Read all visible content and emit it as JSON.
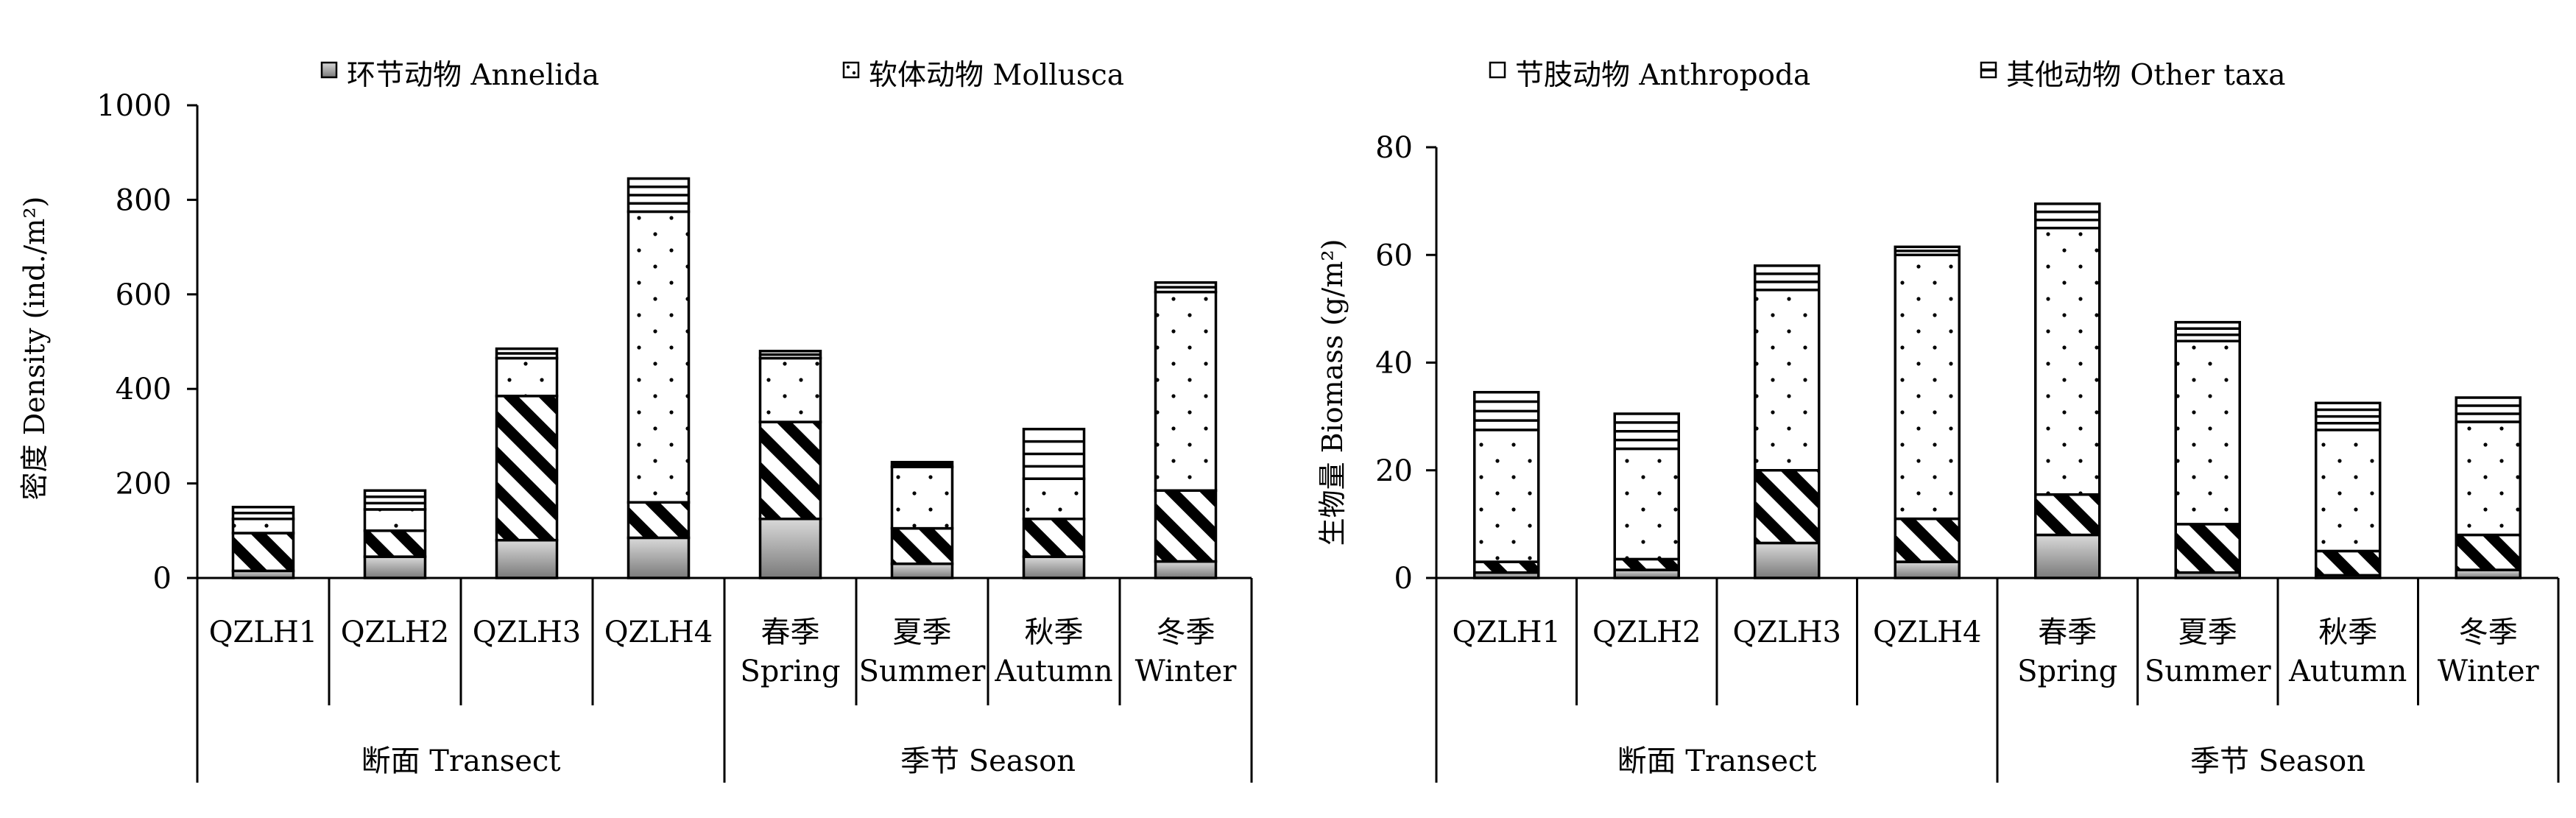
{
  "legend": {
    "items": [
      {
        "label": "环节动物 Annelida",
        "pattern": "annelida"
      },
      {
        "label": "软体动物 Mollusca",
        "pattern": "mollusca"
      },
      {
        "label": "节肢动物 Anthropoda",
        "pattern": "arthropoda"
      },
      {
        "label": "其他动物 Other taxa",
        "pattern": "other"
      }
    ]
  },
  "colors": {
    "annelida_top": "#d9d9d9",
    "annelida_bottom": "#7a7a7a",
    "ink": "#000000",
    "background": "#ffffff"
  },
  "chart_data": [
    {
      "type": "bar",
      "stacked": true,
      "ylabel": "密度  Density (ind./m²)",
      "ylim": [
        0,
        1000
      ],
      "yticks": [
        0,
        200,
        400,
        600,
        800,
        1000
      ],
      "categories": [
        {
          "label": [
            "QZLH1"
          ]
        },
        {
          "label": [
            "QZLH2"
          ]
        },
        {
          "label": [
            "QZLH3"
          ]
        },
        {
          "label": [
            "QZLH4"
          ]
        },
        {
          "label": [
            "春季",
            "Spring"
          ]
        },
        {
          "label": [
            "夏季",
            "Summer"
          ]
        },
        {
          "label": [
            "秋季",
            "Autumn"
          ]
        },
        {
          "label": [
            "冬季",
            "Winter"
          ]
        }
      ],
      "groups": [
        {
          "label": "断面  Transect",
          "from": 0,
          "to": 3
        },
        {
          "label": "季节  Season",
          "from": 4,
          "to": 7
        }
      ],
      "series": [
        {
          "name": "环节动物 Annelida",
          "pattern": "annelida",
          "values": [
            15,
            45,
            80,
            85,
            125,
            30,
            45,
            35
          ]
        },
        {
          "name": "节肢动物 Anthropoda",
          "pattern": "arthropoda",
          "values": [
            80,
            55,
            305,
            75,
            205,
            75,
            80,
            150
          ]
        },
        {
          "name": "软体动物 Mollusca",
          "pattern": "mollusca",
          "values": [
            30,
            45,
            80,
            615,
            135,
            130,
            85,
            420
          ]
        },
        {
          "name": "其他动物 Other taxa",
          "pattern": "other",
          "values": [
            25,
            40,
            20,
            70,
            15,
            10,
            105,
            20
          ]
        }
      ],
      "grid": false,
      "legend_position": "top"
    },
    {
      "type": "bar",
      "stacked": true,
      "ylabel": "生物量  Biomass (g/m²)",
      "ylim": [
        0,
        80
      ],
      "yticks": [
        0,
        20,
        40,
        60,
        80
      ],
      "categories": [
        {
          "label": [
            "QZLH1"
          ]
        },
        {
          "label": [
            "QZLH2"
          ]
        },
        {
          "label": [
            "QZLH3"
          ]
        },
        {
          "label": [
            "QZLH4"
          ]
        },
        {
          "label": [
            "春季",
            "Spring"
          ]
        },
        {
          "label": [
            "夏季",
            "Summer"
          ]
        },
        {
          "label": [
            "秋季",
            "Autumn"
          ]
        },
        {
          "label": [
            "冬季",
            "Winter"
          ]
        }
      ],
      "groups": [
        {
          "label": "断面  Transect",
          "from": 0,
          "to": 3
        },
        {
          "label": "季节  Season",
          "from": 4,
          "to": 7
        }
      ],
      "series": [
        {
          "name": "环节动物 Annelida",
          "pattern": "annelida",
          "values": [
            1,
            1.5,
            6.5,
            3,
            8,
            1,
            0.5,
            1.5
          ]
        },
        {
          "name": "节肢动物 Anthropoda",
          "pattern": "arthropoda",
          "values": [
            2,
            2,
            13.5,
            8,
            7.5,
            9,
            4.5,
            6.5
          ]
        },
        {
          "name": "软体动物 Mollusca",
          "pattern": "mollusca",
          "values": [
            24.5,
            20.5,
            33.5,
            49,
            49.5,
            34,
            22.5,
            21
          ]
        },
        {
          "name": "其他动物 Other taxa",
          "pattern": "other",
          "values": [
            7,
            6.5,
            4.5,
            1.5,
            4.5,
            3.5,
            5,
            4.5
          ]
        }
      ],
      "grid": false,
      "legend_position": "top"
    }
  ]
}
